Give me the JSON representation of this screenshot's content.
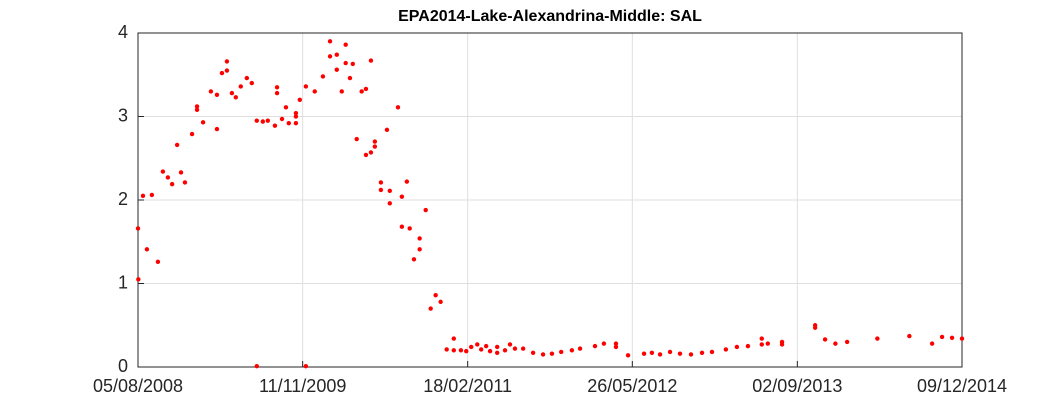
{
  "chart_data": {
    "type": "scatter",
    "title": "EPA2014-Lake-Alexandrina-Middle: SAL",
    "color": "#ff0000",
    "grid": true,
    "x": [
      "2008-08-05",
      "2008-08-06",
      "2008-08-19",
      "2008-08-30",
      "2008-09-13",
      "2008-09-30",
      "2008-10-14",
      "2008-10-28",
      "2008-11-09",
      "2008-11-23",
      "2008-12-04",
      "2008-12-15",
      "2009-01-04",
      "2009-01-18",
      "2009-01-18",
      "2009-02-04",
      "2009-02-26",
      "2009-03-15",
      "2009-03-15",
      "2009-03-29",
      "2009-04-12",
      "2009-04-12",
      "2009-04-26",
      "2009-05-07",
      "2009-05-21",
      "2009-06-07",
      "2009-06-21",
      "2009-07-05",
      "2009-07-05",
      "2009-07-22",
      "2009-08-05",
      "2009-08-25",
      "2009-08-31",
      "2009-08-31",
      "2009-09-14",
      "2009-09-25",
      "2009-10-03",
      "2009-10-23",
      "2009-10-23",
      "2009-10-23",
      "2009-11-03",
      "2009-11-20",
      "2009-11-20",
      "2009-12-15",
      "2010-01-07",
      "2010-01-27",
      "2010-01-27",
      "2010-02-15",
      "2010-02-15",
      "2010-03-01",
      "2010-03-12",
      "2010-03-12",
      "2010-03-24",
      "2010-04-01",
      "2010-04-12",
      "2010-04-26",
      "2010-05-08",
      "2010-05-08",
      "2010-05-22",
      "2010-05-22",
      "2010-06-02",
      "2010-06-02",
      "2010-06-19",
      "2010-06-19",
      "2010-07-06",
      "2010-07-14",
      "2010-07-14",
      "2010-08-06",
      "2010-08-17",
      "2010-08-17",
      "2010-08-31",
      "2010-09-08",
      "2010-09-20",
      "2010-10-06",
      "2010-10-06",
      "2010-10-23",
      "2010-11-06",
      "2010-11-20",
      "2010-12-04",
      "2010-12-21",
      "2011-01-10",
      "2011-01-10",
      "2011-01-30",
      "2011-02-14",
      "2011-02-28",
      "2011-03-17",
      "2011-03-28",
      "2011-04-11",
      "2011-04-22",
      "2011-05-12",
      "2011-05-12",
      "2011-06-03",
      "2011-06-17",
      "2011-07-01",
      "2011-07-24",
      "2011-08-21",
      "2011-09-18",
      "2011-10-13",
      "2011-11-08",
      "2011-12-08",
      "2011-12-31",
      "2012-02-11",
      "2012-03-07",
      "2012-04-10",
      "2012-04-10",
      "2012-05-14",
      "2012-06-28",
      "2012-07-20",
      "2012-08-12",
      "2012-09-09",
      "2012-10-07",
      "2012-11-07",
      "2012-12-08",
      "2013-01-05",
      "2013-02-13",
      "2013-03-16",
      "2013-04-16",
      "2013-05-25",
      "2013-05-25",
      "2013-06-11",
      "2013-07-21",
      "2013-07-21",
      "2013-10-22",
      "2013-10-22",
      "2013-11-19",
      "2013-12-18",
      "2014-01-20",
      "2014-04-15",
      "2014-07-14",
      "2014-09-16",
      "2014-10-14",
      "2014-11-11",
      "2014-12-09"
    ],
    "values": [
      1.66,
      1.05,
      2.05,
      1.41,
      2.06,
      1.26,
      2.34,
      2.27,
      2.19,
      2.66,
      2.33,
      2.21,
      2.79,
      3.08,
      3.12,
      2.93,
      3.3,
      2.85,
      3.26,
      3.52,
      3.66,
      3.55,
      3.28,
      3.23,
      3.36,
      3.46,
      3.4,
      2.95,
      0.01,
      2.94,
      2.95,
      2.89,
      3.35,
      3.28,
      2.97,
      3.11,
      2.92,
      2.92,
      3.0,
      3.04,
      3.2,
      3.36,
      0.01,
      3.3,
      3.48,
      3.9,
      3.72,
      3.74,
      3.56,
      3.3,
      3.86,
      3.64,
      3.46,
      3.63,
      2.73,
      3.3,
      2.54,
      3.33,
      3.67,
      2.57,
      2.7,
      2.64,
      2.21,
      2.12,
      2.84,
      2.11,
      1.96,
      3.11,
      2.04,
      1.68,
      2.22,
      1.66,
      1.29,
      1.41,
      1.54,
      1.88,
      0.7,
      0.86,
      0.78,
      0.21,
      0.2,
      0.34,
      0.2,
      0.19,
      0.24,
      0.27,
      0.21,
      0.25,
      0.19,
      0.24,
      0.17,
      0.2,
      0.27,
      0.22,
      0.22,
      0.17,
      0.15,
      0.16,
      0.18,
      0.2,
      0.22,
      0.25,
      0.28,
      0.28,
      0.24,
      0.14,
      0.16,
      0.17,
      0.15,
      0.18,
      0.16,
      0.15,
      0.17,
      0.18,
      0.21,
      0.24,
      0.25,
      0.34,
      0.27,
      0.28,
      0.27,
      0.3,
      0.5,
      0.47,
      0.33,
      0.28,
      0.3,
      0.34,
      0.37,
      0.28,
      0.36,
      0.35,
      0.34
    ],
    "xlim": [
      "2008-08-05",
      "2014-12-09"
    ],
    "xticks": [
      {
        "value": "2008-08-05",
        "label": "05/08/2008"
      },
      {
        "value": "2009-11-11",
        "label": "11/11/2009"
      },
      {
        "value": "2011-02-18",
        "label": "18/02/2011"
      },
      {
        "value": "2012-05-26",
        "label": "26/05/2012"
      },
      {
        "value": "2013-09-02",
        "label": "02/09/2013"
      },
      {
        "value": "2014-12-09",
        "label": "09/12/2014"
      }
    ],
    "ylim": [
      0,
      4
    ],
    "yticks": [
      0,
      1,
      2,
      3,
      4
    ]
  }
}
